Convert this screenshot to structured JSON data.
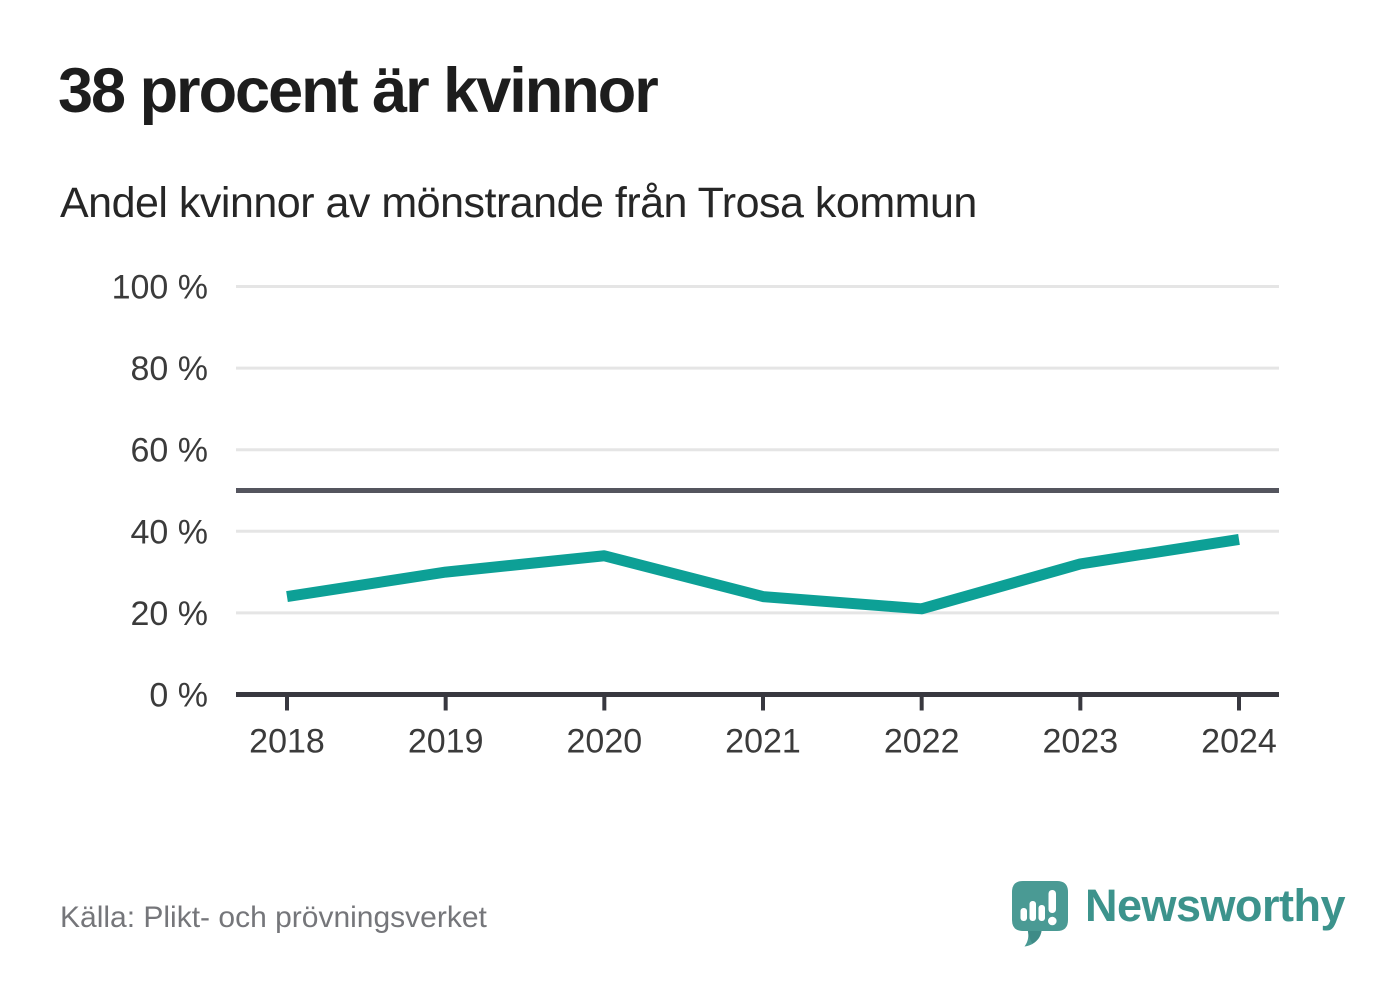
{
  "header": {
    "title": "38 procent är kvinnor",
    "subtitle": "Andel kvinnor av mönstrande från Trosa kommun"
  },
  "chart_data": {
    "type": "line",
    "x": [
      "2018",
      "2019",
      "2020",
      "2021",
      "2022",
      "2023",
      "2024"
    ],
    "values": [
      24,
      30,
      34,
      24,
      21,
      32,
      38
    ],
    "unit": "%",
    "title": "38 procent är kvinnor",
    "subtitle": "Andel kvinnor av mönstrande från Trosa kommun",
    "xlabel": "",
    "ylabel": "",
    "ylim": [
      0,
      100
    ],
    "yticks": [
      0,
      20,
      40,
      60,
      80,
      100
    ],
    "ytick_labels": [
      "0 %",
      "20 %",
      "40 %",
      "60 %",
      "80 %",
      "100 %"
    ],
    "reference_line": 50,
    "grid": true,
    "legend": "none",
    "line_color": "#0da096",
    "reference_line_color": "#54555e",
    "gridline_color": "#e5e5e5",
    "axis_color": "#38383f",
    "tick_label_color": "#3b3b3b"
  },
  "footer": {
    "source": "Källa: Plikt- och prövningsverket",
    "brand": "Newsworthy",
    "brand_color": "#3c938c",
    "logo_icon_color": "#4a9a94",
    "logo_icon_shadow_color": "#35807c",
    "logo_icon": "speech-bubble-bar-chart-icon"
  }
}
